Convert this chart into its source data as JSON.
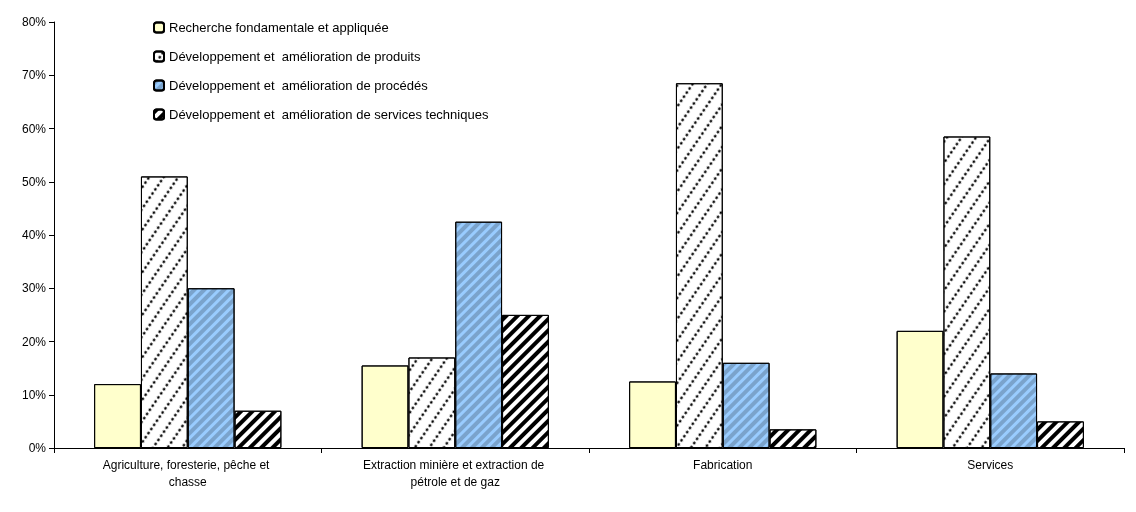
{
  "chart_data": {
    "type": "bar",
    "categories": [
      "Agriculture, foresterie, pêche et chasse",
      "Extraction minière et extraction de pétrole et de gaz",
      "Fabrication",
      "Services"
    ],
    "series": [
      {
        "name": "Recherche fondamentale et appliquée",
        "color": "#ffffcc",
        "values": [
          12,
          15.5,
          12.5,
          22
        ]
      },
      {
        "name": "Développement et  amélioration de produits",
        "color": "#ffffff",
        "values": [
          51,
          17,
          68.5,
          58.5
        ]
      },
      {
        "name": "Développement et  amélioration de procédés",
        "color": "#99ccff",
        "values": [
          30,
          42.5,
          16,
          14
        ]
      },
      {
        "name": "Développement et  amélioration de services techniques",
        "color": "#ffffff",
        "values": [
          7,
          25,
          3.5,
          5
        ]
      }
    ],
    "ylim": [
      0,
      80
    ],
    "yticks": [
      {
        "value": 0,
        "label": "0%"
      },
      {
        "value": 10,
        "label": "10%"
      },
      {
        "value": 20,
        "label": "20%"
      },
      {
        "value": 30,
        "label": "30%"
      },
      {
        "value": 40,
        "label": "40%"
      },
      {
        "value": 50,
        "label": "50%"
      },
      {
        "value": 60,
        "label": "60%"
      },
      {
        "value": 70,
        "label": "70%"
      },
      {
        "value": 80,
        "label": "80%"
      }
    ],
    "grid": false,
    "legend": "top left"
  }
}
